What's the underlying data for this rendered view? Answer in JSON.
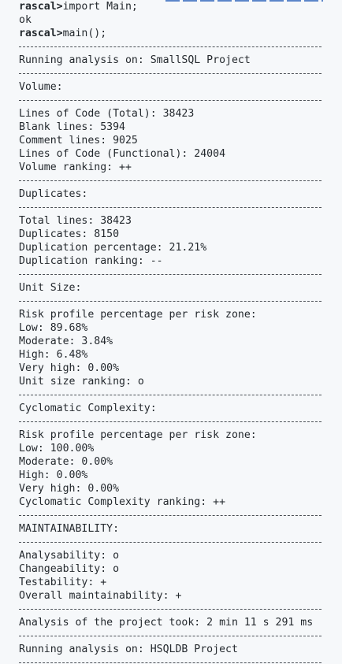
{
  "console": {
    "cmd1_prompt": "rascal>",
    "cmd1_text": "import Main;",
    "ok": "ok",
    "cmd2_prompt": "rascal>",
    "cmd2_text": "main();",
    "running1": "Running analysis on: SmallSQL Project",
    "volume_heading": "Volume:",
    "loc_total": "Lines of Code (Total): 38423",
    "blank_lines": "Blank lines: 5394",
    "comment_lines": "Comment lines: 9025",
    "loc_functional": "Lines of Code (Functional): 24004",
    "volume_ranking": "Volume ranking: ++",
    "duplicates_heading": "Duplicates:",
    "total_lines": "Total lines: 38423",
    "duplicates": "Duplicates: 8150",
    "duplication_percentage": "Duplication percentage: 21.21%",
    "duplication_ranking": "Duplication ranking: --",
    "unit_size_heading": "Unit Size:",
    "us_risk_profile": "Risk profile percentage per risk zone:",
    "us_low": "Low: 89.68%",
    "us_moderate": "Moderate: 3.84%",
    "us_high": "High: 6.48%",
    "us_very_high": "Very high: 0.00%",
    "us_ranking": "Unit size ranking: o",
    "cc_heading": "Cyclomatic Complexity:",
    "cc_risk_profile": "Risk profile percentage per risk zone:",
    "cc_low": "Low: 100.00%",
    "cc_moderate": "Moderate: 0.00%",
    "cc_high": "High: 0.00%",
    "cc_very_high": "Very high: 0.00%",
    "cc_ranking": "Cyclomatic Complexity ranking: ++",
    "maint_heading": "MAINTAINABILITY:",
    "analysability": "Analysability: o",
    "changeability": "Changeability: o",
    "testability": "Testability: +",
    "overall": "Overall maintainability: +",
    "duration": "Analysis of the project took: 2 min 11 s 291 ms",
    "running2": "Running analysis on: HSQLDB Project"
  }
}
